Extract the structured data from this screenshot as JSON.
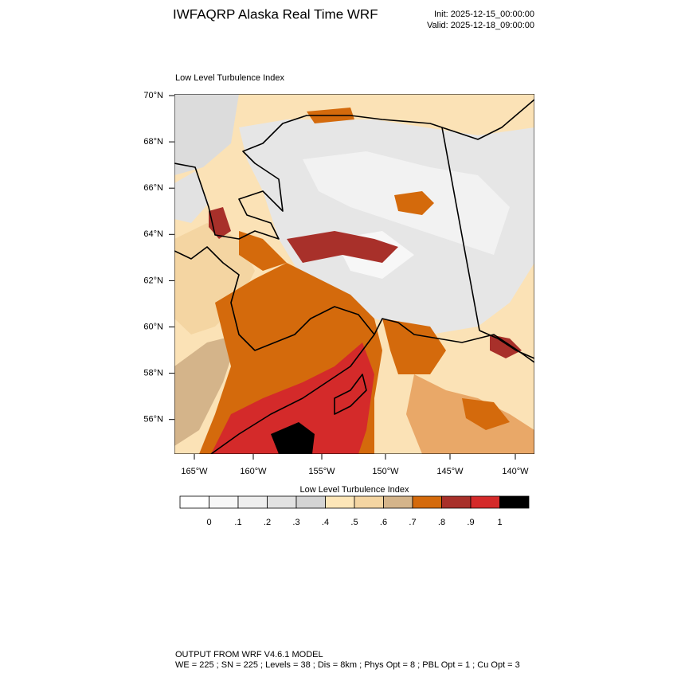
{
  "header": {
    "title": "IWFAQRP Alaska Real Time WRF",
    "init": "Init: 2025-12-15_00:00:00",
    "valid": "Valid: 2025-12-18_09:00:00"
  },
  "map": {
    "title": "Low Level Turbulence Index",
    "lat_labels": [
      "70°N",
      "68°N",
      "66°N",
      "64°N",
      "62°N",
      "60°N",
      "58°N",
      "56°N"
    ],
    "lon_labels": [
      "165°W",
      "160°W",
      "155°W",
      "150°W",
      "145°W",
      "140°W"
    ]
  },
  "colorbar": {
    "title": "Low Level Turbulence Index",
    "colors": [
      "#ffffff",
      "#f7f7f7",
      "#eeeeee",
      "#e2e2e2",
      "#d4d4d4",
      "#fde6b8",
      "#f4d5a2",
      "#d4b48a",
      "#d46a0c",
      "#a8302a",
      "#d42a2a",
      "#000000"
    ],
    "labels": [
      "0",
      ".1",
      ".2",
      ".3",
      ".4",
      ".5",
      ".6",
      ".7",
      ".8",
      ".9",
      "1"
    ]
  },
  "footer": {
    "line1": "OUTPUT FROM WRF V4.6.1 MODEL",
    "line2": "WE = 225 ; SN = 225 ; Levels = 38 ; Dis = 8km ; Phys Opt = 8 ; PBL Opt = 1 ; Cu Opt = 3"
  }
}
